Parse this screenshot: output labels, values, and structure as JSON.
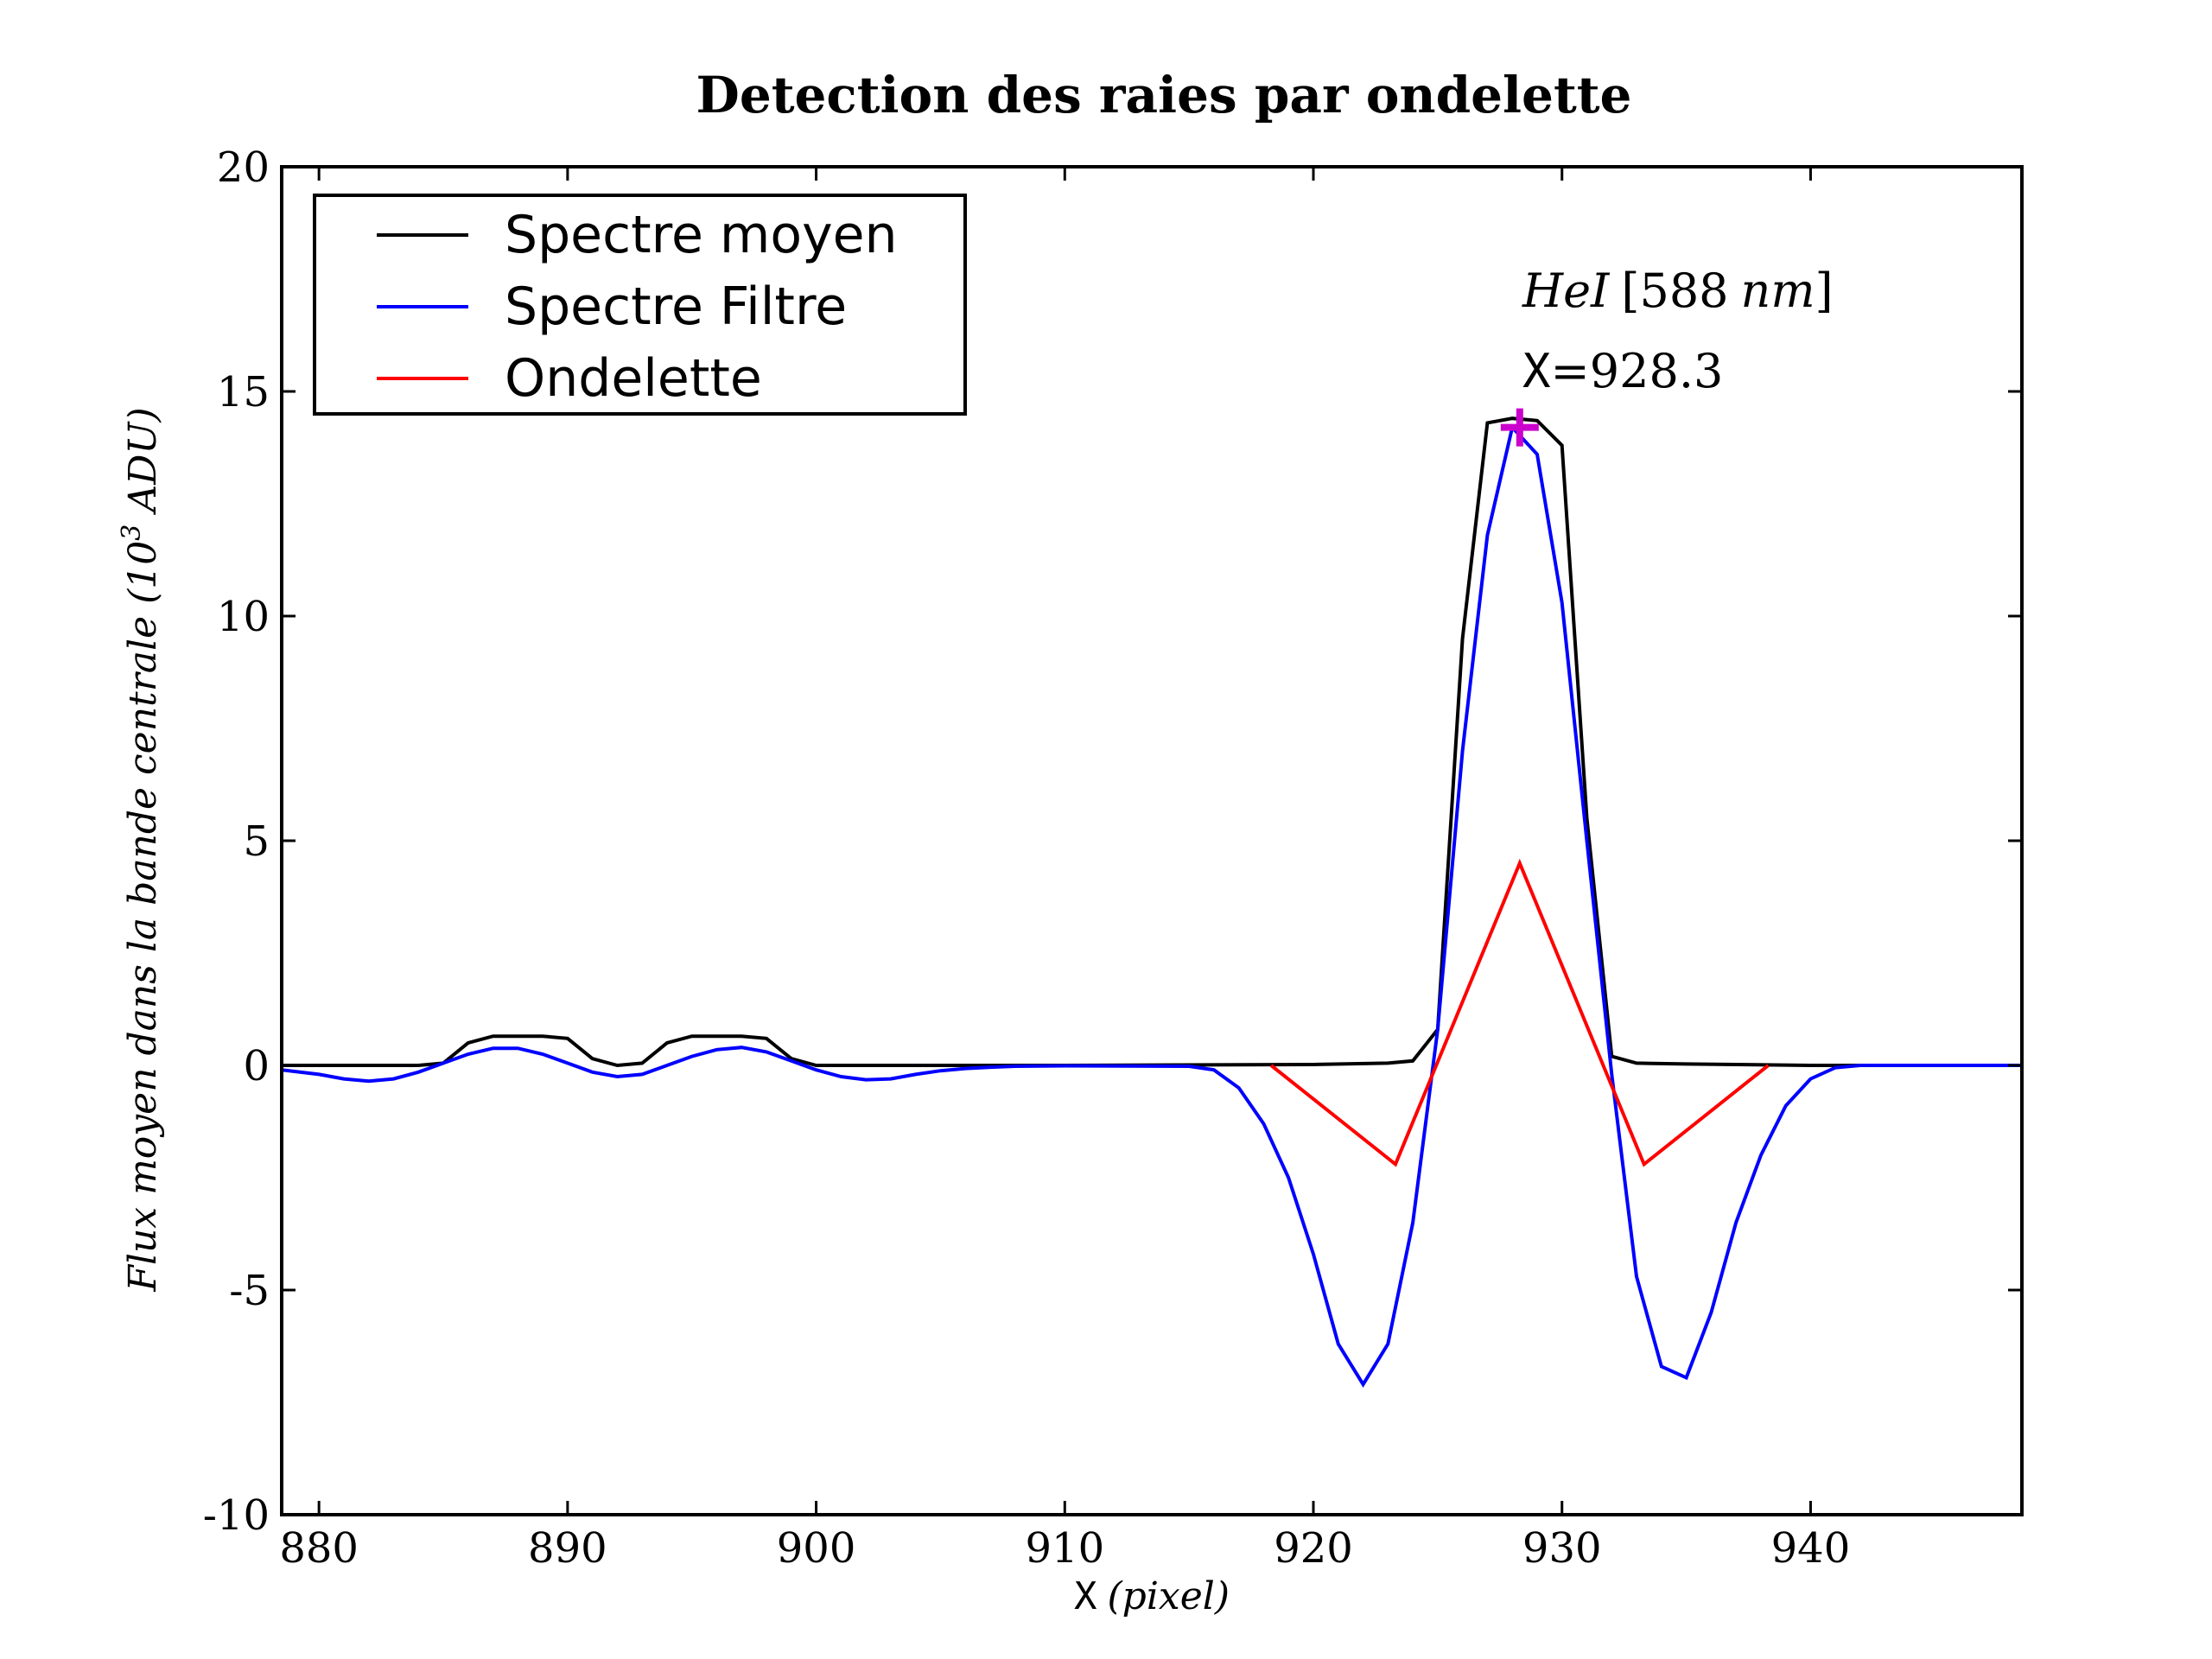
{
  "chart_data": {
    "type": "line",
    "title": "Detection des raies par ondelette",
    "xlabel_prefix": "X",
    "xlabel_unit": "(pixel)",
    "ylabel_text": "Flux moyen dans la bande centrale (10",
    "ylabel_exp": "3",
    "ylabel_unit": " ADU)",
    "xlim": [
      878.5,
      948.5
    ],
    "ylim": [
      -10,
      20
    ],
    "xticks": [
      880,
      890,
      900,
      910,
      920,
      930,
      940
    ],
    "yticks": [
      -10,
      -5,
      0,
      5,
      10,
      15,
      20
    ],
    "ytick_labels": [
      "-10",
      "-5",
      "0",
      "5",
      "10",
      "15",
      "20"
    ],
    "legend_position": "top-left",
    "series": [
      {
        "name": "Spectre moyen",
        "color": "#000000",
        "x": [
          878.5,
          884,
          885,
          886,
          887,
          888,
          889,
          890,
          891,
          892,
          893,
          894,
          895,
          896,
          897,
          898,
          899,
          900,
          901,
          910,
          920,
          923,
          924,
          925,
          926,
          927,
          928,
          929,
          930,
          931,
          932,
          933,
          935,
          940,
          948.5
        ],
        "y": [
          0.0,
          0.0,
          0.05,
          0.5,
          0.65,
          0.65,
          0.65,
          0.6,
          0.15,
          0.0,
          0.05,
          0.5,
          0.65,
          0.65,
          0.65,
          0.6,
          0.15,
          0.0,
          0.0,
          0.0,
          0.02,
          0.05,
          0.1,
          0.8,
          9.5,
          14.3,
          14.4,
          14.35,
          13.8,
          5.5,
          0.2,
          0.05,
          0.03,
          0.0,
          0.0
        ]
      },
      {
        "name": "Spectre Filtre",
        "color": "#0000ff",
        "x": [
          878.5,
          880,
          881,
          882,
          883,
          884,
          885,
          886,
          887,
          888,
          889,
          890,
          891,
          892,
          893,
          894,
          895,
          896,
          897,
          898,
          899,
          900,
          901,
          902,
          903,
          904,
          905,
          906,
          907,
          908,
          910,
          915,
          916,
          917,
          918,
          919,
          920,
          921,
          922,
          923,
          924,
          925,
          926,
          927,
          928,
          929,
          930,
          931,
          932,
          933,
          934,
          935,
          936,
          937,
          938,
          939,
          940,
          941,
          942,
          948.5
        ],
        "y": [
          -0.1,
          -0.2,
          -0.3,
          -0.35,
          -0.3,
          -0.15,
          0.05,
          0.25,
          0.38,
          0.38,
          0.25,
          0.05,
          -0.15,
          -0.25,
          -0.2,
          0.0,
          0.2,
          0.35,
          0.4,
          0.3,
          0.1,
          -0.1,
          -0.25,
          -0.32,
          -0.3,
          -0.2,
          -0.12,
          -0.07,
          -0.04,
          -0.02,
          -0.01,
          -0.02,
          -0.1,
          -0.5,
          -1.3,
          -2.5,
          -4.2,
          -6.2,
          -7.1,
          -6.2,
          -3.5,
          0.8,
          7.0,
          11.8,
          14.2,
          13.6,
          10.3,
          5.0,
          -0.2,
          -4.7,
          -6.7,
          -6.95,
          -5.5,
          -3.5,
          -2.0,
          -0.9,
          -0.3,
          -0.05,
          0.0,
          0.0
        ]
      },
      {
        "name": "Ondelette",
        "color": "#ff0000",
        "x": [
          918.3,
          923.3,
          928.3,
          933.3,
          938.3
        ],
        "y": [
          0.0,
          -2.2,
          4.5,
          -2.2,
          0.0
        ]
      }
    ],
    "marker": {
      "x": 928.3,
      "y": 14.2,
      "color": "#cc00cc",
      "symbol": "plus"
    },
    "annotations": {
      "line_name": "HeI",
      "line_wavelength": "588",
      "line_unit": "nm",
      "peak_prefix": "X",
      "peak_value": "=928.3"
    }
  }
}
